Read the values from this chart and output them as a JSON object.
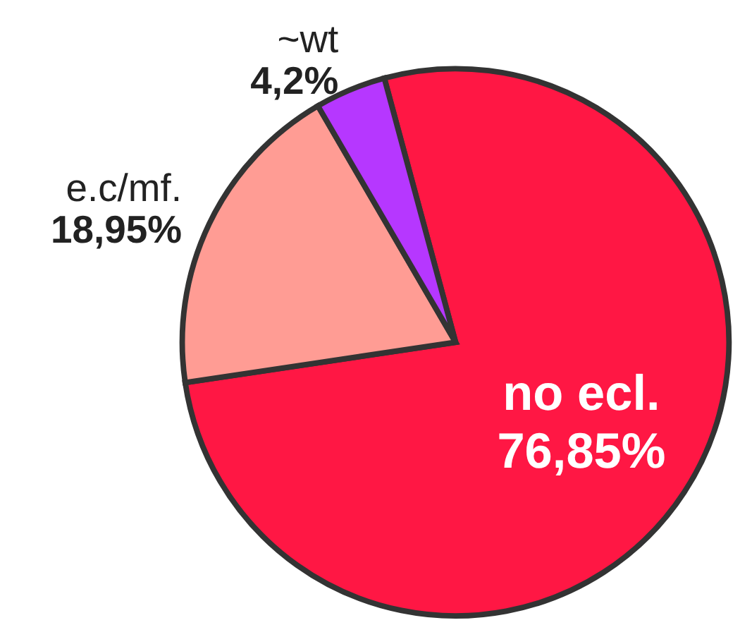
{
  "chart_data": {
    "type": "pie",
    "categories": [
      "no ecl.",
      "e.c/mf.",
      "~wt"
    ],
    "values": [
      76.85,
      18.95,
      4.2
    ],
    "value_labels": [
      "76,85%",
      "18,95%",
      "4,2%"
    ],
    "colors": [
      "#ff1744",
      "#ff9c94",
      "#b637ff"
    ],
    "legend": false
  }
}
